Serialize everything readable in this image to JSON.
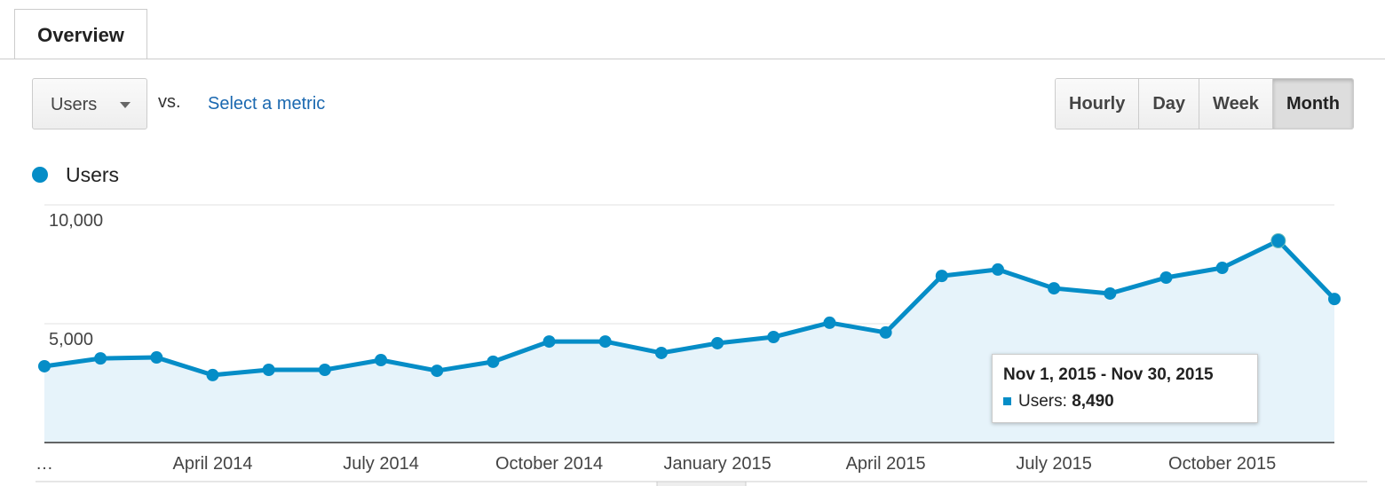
{
  "ui": {
    "tab": "Overview",
    "metric_dropdown": "Users",
    "vs": "vs.",
    "select_metric": "Select a metric",
    "buttons": [
      "Hourly",
      "Day",
      "Week",
      "Month"
    ],
    "active_button": "Month"
  },
  "chart_data": {
    "type": "area",
    "categories": [
      "…",
      null,
      null,
      "April 2014",
      null,
      null,
      "July 2014",
      null,
      null,
      "October 2014",
      null,
      null,
      "January 2015",
      null,
      null,
      "April 2015",
      null,
      null,
      "July 2015",
      null,
      null,
      "October 2015",
      null,
      null
    ],
    "series": [
      {
        "name": "Users",
        "color": "#058dc7",
        "values": [
          3210,
          3540,
          3580,
          2840,
          3060,
          3060,
          3470,
          3020,
          3400,
          4250,
          4250,
          3770,
          4180,
          4440,
          5040,
          4630,
          7010,
          7280,
          6490,
          6270,
          6940,
          7350,
          8490,
          6040
        ],
        "value_labels": [
          null,
          null,
          null,
          null,
          null,
          null,
          null,
          null,
          null,
          null,
          null,
          null,
          null,
          null,
          null,
          null,
          null,
          null,
          null,
          null,
          null,
          null,
          "8,490",
          null
        ]
      }
    ],
    "tooltip": "Nov 1, 2015 - Nov 30, 2015",
    "tooltip_label": "Users:",
    "ylim": [
      0,
      10000
    ],
    "yticks": [
      {
        "value": 5000,
        "label": "5,000"
      },
      {
        "value": 10000,
        "label": "10,000"
      }
    ],
    "grid": true,
    "fill": "#e6f3fa"
  }
}
